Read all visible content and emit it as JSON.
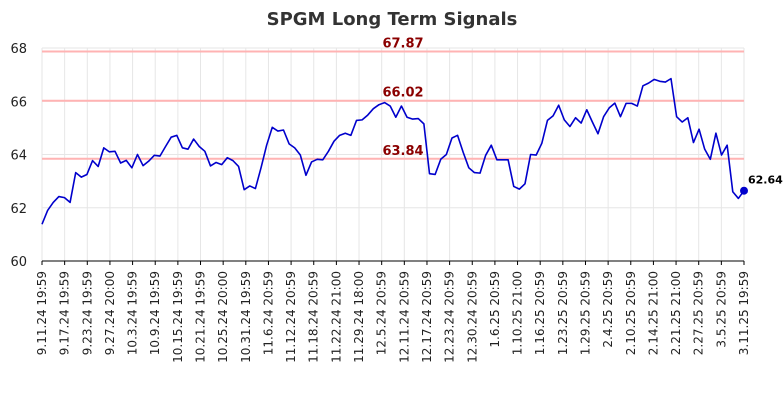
{
  "chart_data": {
    "type": "line",
    "title": "SPGM Long Term Signals",
    "xlabel": "",
    "ylabel": "",
    "ylim": [
      60,
      68
    ],
    "yticks": [
      60,
      62,
      64,
      66,
      68
    ],
    "grid": true,
    "x_tick_labels": [
      "9.11.24 19:59",
      "9.17.24 19:59",
      "9.23.24 19:59",
      "9.27.24 20:00",
      "10.3.24 19:59",
      "10.9.24 19:59",
      "10.15.24 19:59",
      "10.21.24 19:59",
      "10.25.24 20:00",
      "10.31.24 19:59",
      "11.6.24 20:59",
      "11.12.24 20:59",
      "11.18.24 20:59",
      "11.22.24 21:00",
      "11.29.24 18:00",
      "12.5.24 20:59",
      "12.11.24 20:59",
      "12.17.24 20:59",
      "12.23.24 20:59",
      "12.30.24 20:59",
      "1.6.25 20:59",
      "1.10.25 21:00",
      "1.16.25 20:59",
      "1.23.25 20:59",
      "1.29.25 20:59",
      "2.4.25 20:59",
      "2.10.25 20:59",
      "2.14.25 21:00",
      "2.21.25 21:00",
      "2.27.25 20:59",
      "3.5.25 20:59",
      "3.11.25 19:59"
    ],
    "signal_lines": [
      {
        "value": 67.87,
        "label": "67.87",
        "color": "#ffb3b3",
        "label_color": "#8b0000"
      },
      {
        "value": 66.02,
        "label": "66.02",
        "color": "#ffb3b3",
        "label_color": "#8b0000"
      },
      {
        "value": 63.84,
        "label": "63.84",
        "color": "#ffb3b3",
        "label_color": "#8b0000"
      }
    ],
    "series": [
      {
        "color": "#0000cc",
        "values": [
          61.38,
          61.9,
          62.2,
          62.42,
          62.38,
          62.2,
          63.32,
          63.15,
          63.25,
          63.77,
          63.55,
          64.25,
          64.1,
          64.12,
          63.68,
          63.78,
          63.5,
          64.0,
          63.58,
          63.75,
          63.97,
          63.94,
          64.3,
          64.65,
          64.72,
          64.25,
          64.2,
          64.58,
          64.3,
          64.12,
          63.57,
          63.7,
          63.62,
          63.88,
          63.77,
          63.55,
          62.68,
          62.82,
          62.72,
          63.5,
          64.35,
          65.02,
          64.88,
          64.92,
          64.4,
          64.25,
          63.98,
          63.22,
          63.72,
          63.82,
          63.8,
          64.12,
          64.5,
          64.72,
          64.8,
          64.72,
          65.28,
          65.3,
          65.48,
          65.72,
          65.87,
          65.95,
          65.82,
          65.4,
          65.82,
          65.4,
          65.33,
          65.35,
          65.15,
          63.28,
          63.25,
          63.82,
          64.0,
          64.62,
          64.72,
          64.08,
          63.5,
          63.32,
          63.3,
          63.97,
          64.35,
          63.8,
          63.8,
          63.8,
          62.8,
          62.7,
          62.9,
          64.0,
          63.98,
          64.42,
          65.28,
          65.45,
          65.85,
          65.3,
          65.05,
          65.38,
          65.18,
          65.68,
          65.22,
          64.78,
          65.42,
          65.75,
          65.93,
          65.42,
          65.92,
          65.92,
          65.82,
          66.58,
          66.68,
          66.82,
          66.75,
          66.72,
          66.85,
          65.42,
          65.22,
          65.38,
          64.45,
          64.95,
          64.2,
          63.82,
          64.8,
          63.98,
          64.35,
          62.6,
          62.35,
          62.64
        ]
      }
    ],
    "last_value_label": "62.64"
  }
}
